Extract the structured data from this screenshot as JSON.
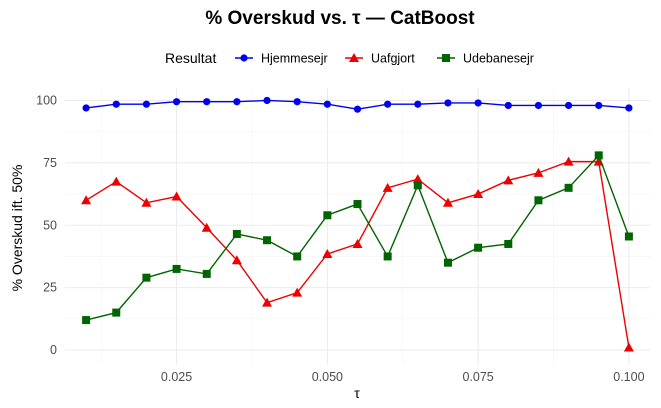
{
  "chart_data": {
    "type": "line",
    "title": "% Overskud vs. τ — CatBoost",
    "xlabel": "τ",
    "ylabel": "% Overskud ift. 50%",
    "legend_title": "Resultat",
    "legend_position": "top",
    "grid": true,
    "xlim": [
      0.0065,
      0.1035
    ],
    "ylim": [
      -6,
      105
    ],
    "x_ticks": [
      0.025,
      0.05,
      0.075,
      0.1
    ],
    "x_tick_labels": [
      "0.025",
      "0.050",
      "0.075",
      "0.100"
    ],
    "y_ticks": [
      0,
      25,
      50,
      75,
      100
    ],
    "y_tick_labels": [
      "0",
      "25",
      "50",
      "75",
      "100"
    ],
    "x": [
      0.01,
      0.015,
      0.02,
      0.025,
      0.03,
      0.035,
      0.04,
      0.045,
      0.05,
      0.055,
      0.06,
      0.065,
      0.07,
      0.075,
      0.08,
      0.085,
      0.09,
      0.095,
      0.1
    ],
    "series": [
      {
        "name": "Hjemmesejr",
        "color": "#0000ee",
        "marker": "circle",
        "values": [
          97,
          98.5,
          98.5,
          99.5,
          99.5,
          99.5,
          100,
          99.5,
          98.5,
          96.5,
          98.5,
          98.5,
          99,
          99,
          98,
          98,
          98,
          98,
          97
        ]
      },
      {
        "name": "Uafgjort",
        "color": "#ee0000",
        "marker": "triangle",
        "values": [
          60,
          67.5,
          59,
          61.5,
          49,
          36,
          19,
          23,
          38.5,
          42.5,
          65,
          68.5,
          59,
          62.5,
          68,
          71,
          75.5,
          75.5,
          1
        ]
      },
      {
        "name": "Udebanesejr",
        "color": "#006400",
        "marker": "square",
        "values": [
          12,
          15,
          29,
          32.5,
          30.5,
          46.5,
          44,
          37.5,
          54,
          58.5,
          37.5,
          66,
          35,
          41,
          42.5,
          60,
          65,
          78,
          45.5
        ]
      }
    ]
  }
}
